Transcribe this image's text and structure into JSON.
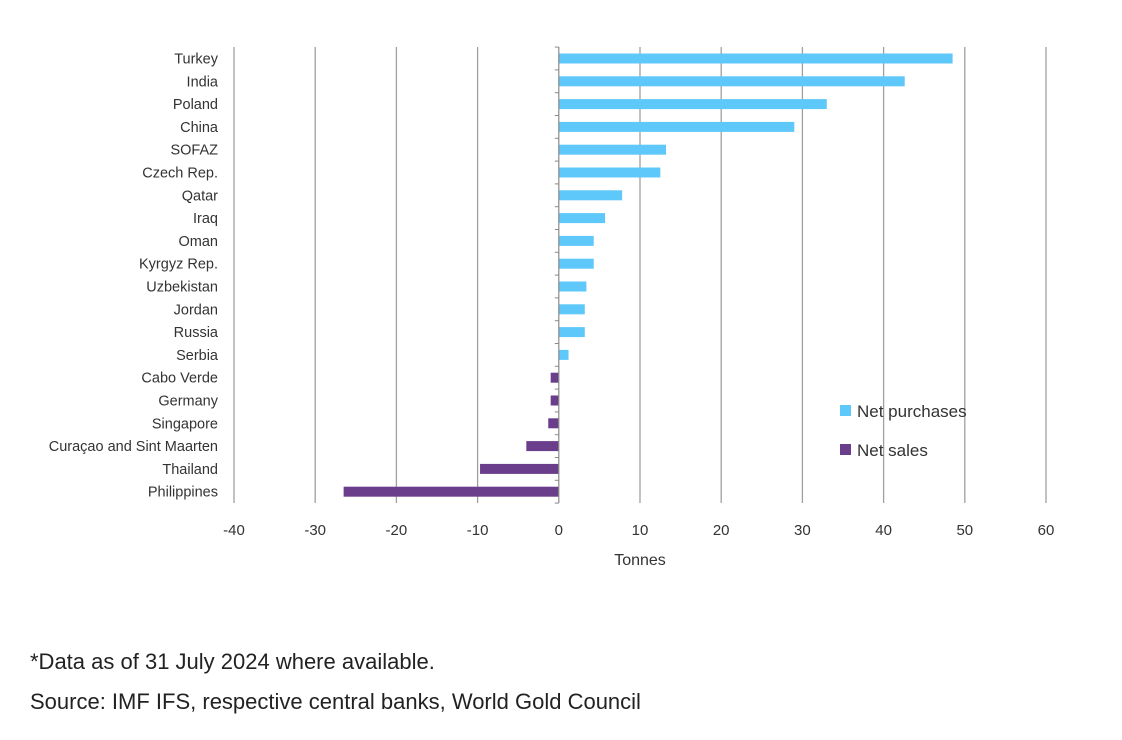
{
  "colors": {
    "net_purchases": "#5ec8fa",
    "net_sales": "#6b3e8c",
    "grid": "#a0a0a0",
    "text": "#333333"
  },
  "chart_data": {
    "type": "bar",
    "orientation": "horizontal",
    "categories": [
      "Turkey",
      "India",
      "Poland",
      "China",
      "SOFAZ",
      "Czech Rep.",
      "Qatar",
      "Iraq",
      "Oman",
      "Kyrgyz Rep.",
      "Uzbekistan",
      "Jordan",
      "Russia",
      "Serbia",
      "Cabo Verde",
      "Germany",
      "Singapore",
      "Curaçao and Sint Maarten",
      "Thailand",
      "Philippines"
    ],
    "values": [
      48.5,
      42.6,
      33.0,
      29.0,
      13.2,
      12.5,
      7.8,
      5.7,
      4.3,
      4.3,
      3.4,
      3.2,
      3.2,
      1.2,
      -1.0,
      -1.0,
      -1.3,
      -4.0,
      -9.7,
      -26.5
    ],
    "series": [
      {
        "name": "Net purchases",
        "color": "#5ec8fa",
        "sign": "positive"
      },
      {
        "name": "Net sales",
        "color": "#6b3e8c",
        "sign": "negative"
      }
    ],
    "xlabel": "Tonnes",
    "xlim": [
      -40,
      60
    ],
    "xticks": [
      -40,
      -30,
      -20,
      -10,
      0,
      10,
      20,
      30,
      40,
      50,
      60
    ],
    "xtick_labels": [
      "-40",
      "-30",
      "-20",
      "-10",
      "0",
      "10",
      "20",
      "30",
      "40",
      "50",
      "60"
    ],
    "grid": "vertical",
    "legend_position": "bottom-right"
  },
  "notes": {
    "footnote": "*Data as of 31 July 2024 where available.",
    "source": "Source: IMF IFS, respective central banks, World Gold Council"
  }
}
